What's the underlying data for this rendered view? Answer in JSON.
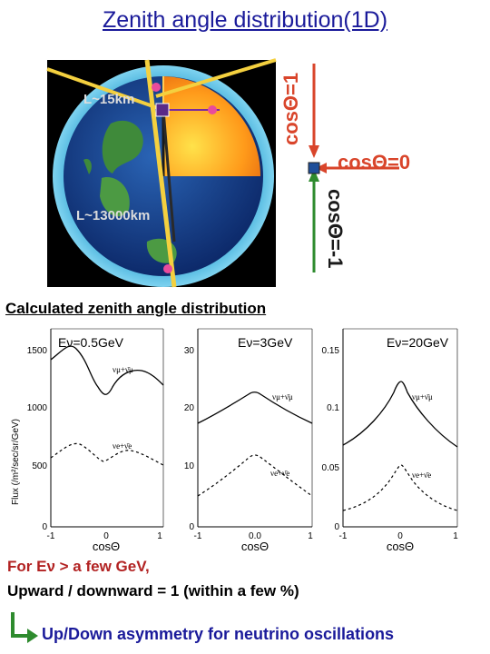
{
  "title": "Zenith angle distribution(1D)",
  "earth": {
    "short_label": "L~15km",
    "long_label": "L~13000km"
  },
  "cos_labels": {
    "top": "cosΘ=1",
    "horizontal": "cosΘ=0",
    "bottom": "cosΘ=-1"
  },
  "section_heading": "Calculated zenith angle distribution",
  "plots": [
    {
      "energy": "Eν=0.5GeV",
      "ylabel": "Flux (/m²/sec/sr/GeV)",
      "yticks": [
        "0",
        "500",
        "1000",
        "1500"
      ],
      "xticks": [
        "-1",
        "0",
        "1"
      ],
      "xlabel": "cosΘ",
      "mu_label": "νμ+ν̄μ",
      "e_label": "νe+ν̄e"
    },
    {
      "energy": "Eν=3GeV",
      "yticks": [
        "0",
        "10",
        "20",
        "30"
      ],
      "xticks": [
        "-1",
        "0.0",
        "1"
      ],
      "xlabel": "cosΘ",
      "mu_label": "νμ+ν̄μ",
      "e_label": "νe+ν̄e"
    },
    {
      "energy": "Eν=20GeV",
      "yticks": [
        "0",
        "0.05",
        "0.1",
        "0.15"
      ],
      "xticks": [
        "-1",
        "0",
        "1"
      ],
      "xlabel": "cosΘ",
      "mu_label": "νμ+ν̄μ",
      "e_label": "νe+ν̄e"
    }
  ],
  "note": {
    "line1": "For Eν > a few GeV,",
    "line2": "Upward / downward = 1  (within a few %)"
  },
  "conclusion": "Up/Down asymmetry for neutrino oscillations",
  "colors": {
    "title": "#1a1a9a",
    "cos_label": "#d9452b",
    "arrow_up": "#d9452b",
    "arrow_down": "#2e8b2e",
    "note_red": "#b22222"
  }
}
